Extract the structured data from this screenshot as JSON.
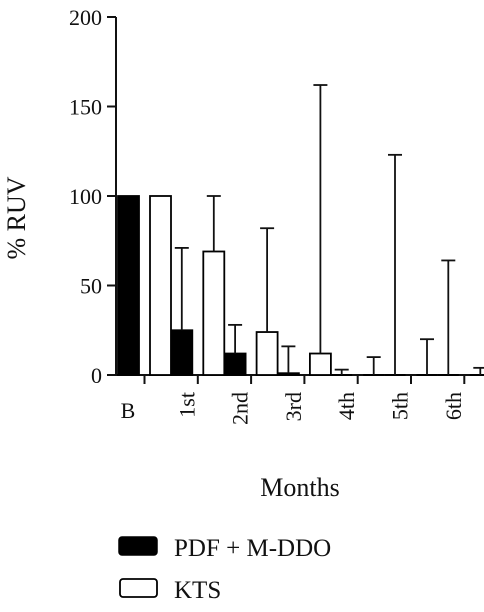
{
  "chart_data": {
    "type": "bar",
    "xlabel": "Months",
    "ylabel": "% RUV",
    "ylim": [
      0,
      200
    ],
    "yticks": [
      0,
      50,
      100,
      150,
      200
    ],
    "categories": [
      "B",
      "1st",
      "2nd",
      "3rd",
      "4th",
      "5th",
      "6th"
    ],
    "series": [
      {
        "name": "PDF + M-DDO",
        "color": "#000000",
        "fill": "solid",
        "values": [
          100,
          25,
          12,
          1,
          0,
          0,
          0
        ],
        "error_upper": [
          null,
          71,
          28,
          16,
          3,
          123,
          64
        ]
      },
      {
        "name": "KTS",
        "color": "#000000",
        "fill": "hollow",
        "values": [
          100,
          69,
          24,
          12,
          0,
          0,
          0
        ],
        "error_upper": [
          null,
          100,
          82,
          162,
          10,
          20,
          4
        ]
      }
    ],
    "grid": false,
    "legend_position": "bottom"
  }
}
